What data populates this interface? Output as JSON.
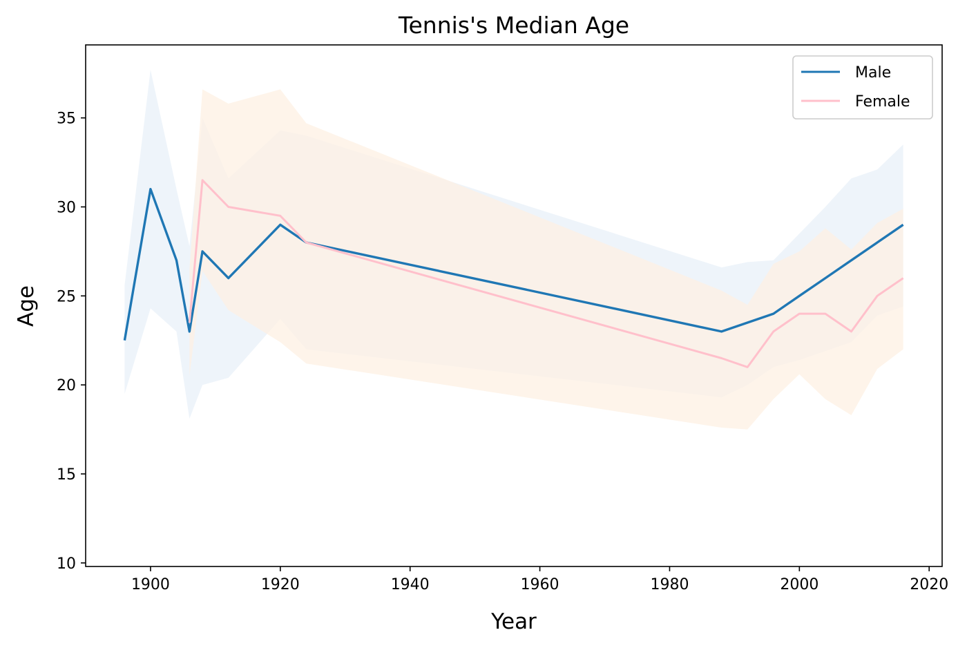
{
  "chart_data": {
    "type": "line",
    "title": "Tennis's Median Age",
    "xlabel": "Year",
    "ylabel": "Age",
    "xlim": [
      1890,
      2022
    ],
    "ylim": [
      9.8,
      39.1
    ],
    "x_ticks": [
      1900,
      1920,
      1940,
      1960,
      1980,
      2000,
      2020
    ],
    "y_ticks": [
      10,
      15,
      20,
      25,
      30,
      35
    ],
    "grid": false,
    "legend_position": "top-right",
    "series": [
      {
        "name": "Male",
        "color": "#1f77b4",
        "band_color": "#e8f0f8",
        "x": [
          1896,
          1900,
          1904,
          1906,
          1908,
          1912,
          1920,
          1924,
          1988,
          1992,
          1996,
          2000,
          2004,
          2008,
          2012,
          2016
        ],
        "y": [
          22.5,
          31.0,
          27.0,
          23.0,
          27.5,
          26.0,
          29.0,
          28.0,
          23.0,
          23.5,
          24.0,
          25.0,
          26.0,
          27.0,
          28.0,
          29.0
        ],
        "upper": [
          25.6,
          37.7,
          31.0,
          27.8,
          35.0,
          31.6,
          34.3,
          34.0,
          26.6,
          26.9,
          27.0,
          28.5,
          30.0,
          31.6,
          32.1,
          33.5
        ],
        "lower": [
          19.5,
          24.3,
          23.0,
          18.1,
          20.0,
          20.4,
          23.7,
          22.0,
          19.3,
          20.0,
          21.0,
          21.4,
          21.9,
          22.4,
          23.9,
          24.4
        ]
      },
      {
        "name": "Female",
        "color": "#ffc0cb",
        "band_color": "#fdf0e3",
        "x": [
          1906,
          1908,
          1912,
          1920,
          1924,
          1988,
          1992,
          1996,
          2000,
          2004,
          2008,
          2012,
          2016
        ],
        "y": [
          23.5,
          31.5,
          30.0,
          29.5,
          28.0,
          21.5,
          21.0,
          23.0,
          24.0,
          24.0,
          23.0,
          25.0,
          26.0
        ],
        "upper": [
          26.5,
          36.6,
          35.8,
          36.6,
          34.7,
          25.3,
          24.5,
          26.8,
          27.5,
          28.8,
          27.6,
          29.1,
          29.9
        ],
        "lower": [
          20.5,
          26.4,
          24.2,
          22.4,
          21.2,
          17.6,
          17.5,
          19.2,
          20.6,
          19.2,
          18.3,
          20.9,
          22.0
        ]
      }
    ]
  }
}
